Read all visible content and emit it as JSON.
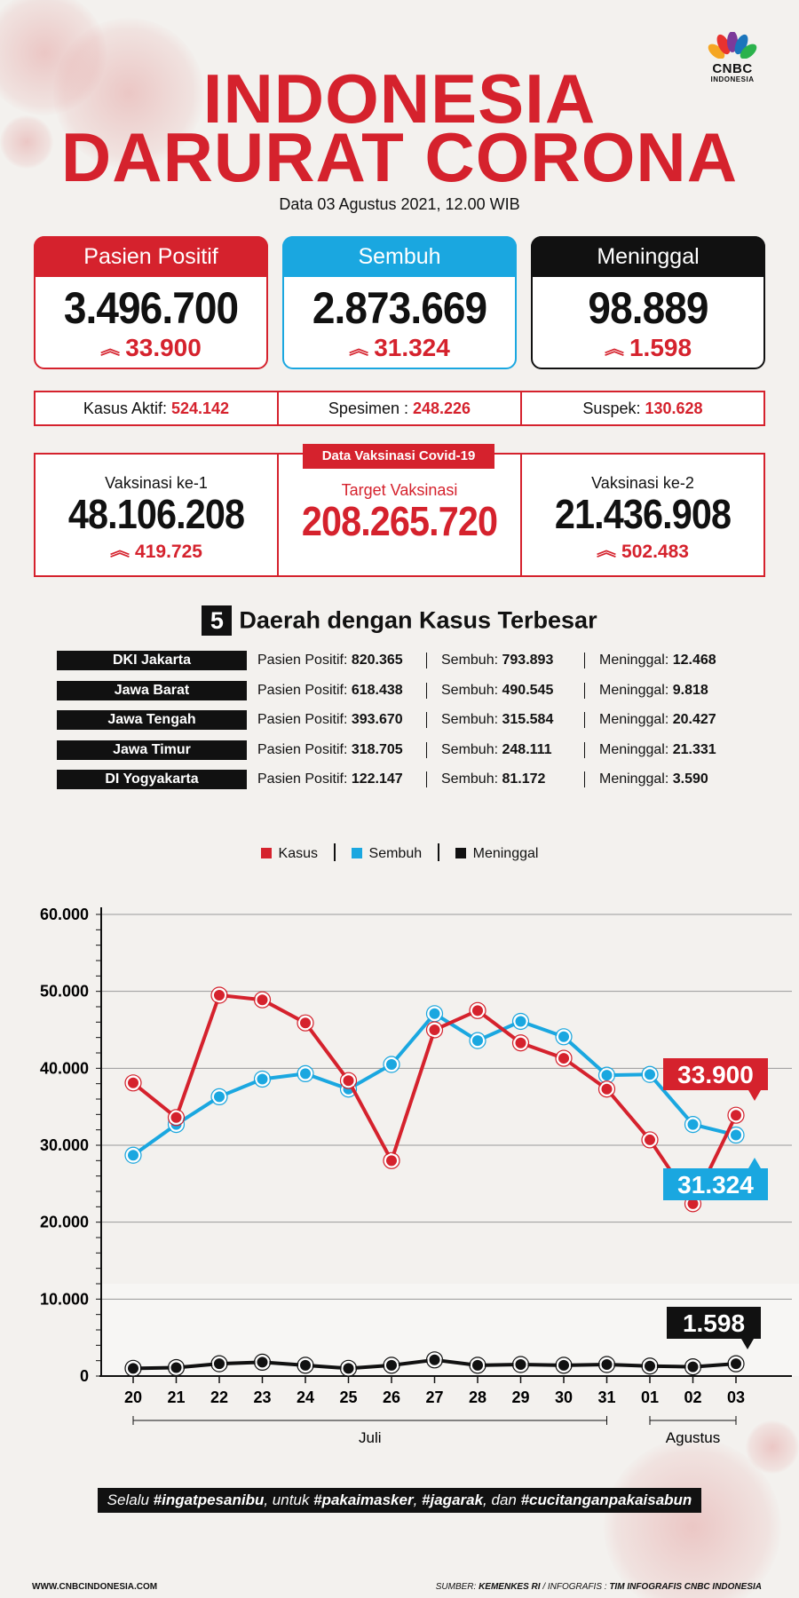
{
  "header": {
    "title_line1": "INDONESIA",
    "title_line2": "DARURAT CORONA",
    "subtitle": "Data 03 Agustus 2021, 12.00 WIB",
    "logo_text": "CNBC",
    "logo_subtext": "INDONESIA"
  },
  "cards": [
    {
      "label": "Pasien Positif",
      "value": "3.496.700",
      "delta": "33.900",
      "color": "#d5222d"
    },
    {
      "label": "Sembuh",
      "value": "2.873.669",
      "delta": "31.324",
      "color": "#1aa7e0"
    },
    {
      "label": "Meninggal",
      "value": "98.889",
      "delta": "1.598",
      "color": "#111111"
    }
  ],
  "stats": {
    "aktif_label": "Kasus Aktif:",
    "aktif_value": "524.142",
    "spesimen_label": "Spesimen :",
    "spesimen_value": "248.226",
    "suspek_label": "Suspek:",
    "suspek_value": "130.628"
  },
  "vaksin": {
    "tag": "Data Vaksinasi Covid-19",
    "dose1_label": "Vaksinasi ke-1",
    "dose1_value": "48.106.208",
    "dose1_delta": "419.725",
    "target_label": "Target Vaksinasi",
    "target_value": "208.265.720",
    "dose2_label": "Vaksinasi ke-2",
    "dose2_value": "21.436.908",
    "dose2_delta": "502.483"
  },
  "regions": {
    "number": "5",
    "title": "Daerah dengan Kasus Terbesar",
    "positif_label": "Pasien Positif:",
    "sembuh_label": "Sembuh:",
    "meninggal_label": "Meninggal:",
    "rows": [
      {
        "name": "DKI Jakarta",
        "positif": "820.365",
        "sembuh": "793.893",
        "meninggal": "12.468"
      },
      {
        "name": "Jawa Barat",
        "positif": "618.438",
        "sembuh": "490.545",
        "meninggal": "9.818"
      },
      {
        "name": "Jawa Tengah",
        "positif": "393.670",
        "sembuh": "315.584",
        "meninggal": "20.427"
      },
      {
        "name": "Jawa Timur",
        "positif": "318.705",
        "sembuh": "248.111",
        "meninggal": "21.331"
      },
      {
        "name": "DI Yogyakarta",
        "positif": "122.147",
        "sembuh": "81.172",
        "meninggal": "3.590"
      }
    ]
  },
  "chart_data": {
    "type": "line",
    "x": [
      "20",
      "21",
      "22",
      "23",
      "24",
      "25",
      "26",
      "27",
      "28",
      "29",
      "30",
      "31",
      "01",
      "02",
      "03"
    ],
    "month_groups": [
      {
        "label": "Juli",
        "from": "20",
        "to": "31"
      },
      {
        "label": "Agustus",
        "from": "01",
        "to": "03"
      }
    ],
    "ylim": [
      0,
      60000
    ],
    "yticks": [
      "0",
      "10.000",
      "20.000",
      "30.000",
      "40.000",
      "50.000",
      "60.000"
    ],
    "ytick_values": [
      0,
      10000,
      20000,
      30000,
      40000,
      50000,
      60000
    ],
    "grid": true,
    "legend_position": "top-center",
    "series": [
      {
        "name": "Kasus",
        "color": "#d5222d",
        "values": [
          38100,
          33600,
          49500,
          48900,
          45900,
          38400,
          28000,
          45000,
          47500,
          43300,
          41300,
          37300,
          30700,
          22400,
          33900
        ]
      },
      {
        "name": "Sembuh",
        "color": "#1aa7e0",
        "values": [
          28700,
          32700,
          36300,
          38600,
          39300,
          37300,
          40500,
          47100,
          43600,
          46100,
          44100,
          39100,
          39200,
          32700,
          31324
        ]
      },
      {
        "name": "Meninggal",
        "color": "#111111",
        "values": [
          1000,
          1100,
          1600,
          1800,
          1400,
          1000,
          1400,
          2100,
          1400,
          1500,
          1400,
          1500,
          1300,
          1200,
          1598
        ]
      }
    ],
    "callouts": [
      "33.900",
      "31.324",
      "1.598"
    ]
  },
  "footer": {
    "slogan_parts": [
      "Selalu ",
      "#ingatpesanibu",
      ", untuk ",
      "#pakaimasker",
      ", ",
      "#jagarak",
      ", dan ",
      "#cucitanganpakaisabun"
    ],
    "website": "WWW.CNBCINDONESIA.COM",
    "source_label": "SUMBER:",
    "source": "KEMENKES RI",
    "credit_label": "/ INFOGRAFIS :",
    "credit": "TIM INFOGRAFIS CNBC INDONESIA"
  }
}
